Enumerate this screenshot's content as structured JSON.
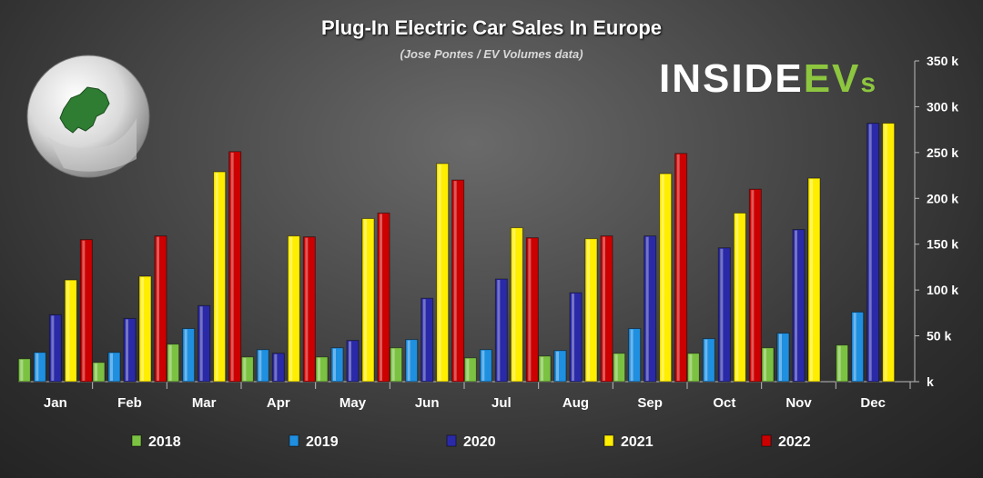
{
  "title": "Plug-In Electric Car Sales In Europe",
  "subtitle": "(Jose Pontes / EV Volumes data)",
  "logo": {
    "prefix": "INSIDE",
    "ev": "EV",
    "suffix": "s"
  },
  "colors": {
    "2018": "#7cc242",
    "2019": "#1f8fe0",
    "2020": "#2a2aa8",
    "2021": "#ffee00",
    "2022": "#cc0000"
  },
  "chart_data": {
    "type": "bar",
    "categories": [
      "Jan",
      "Feb",
      "Mar",
      "Apr",
      "May",
      "Jun",
      "Jul",
      "Aug",
      "Sep",
      "Oct",
      "Nov",
      "Dec"
    ],
    "series": [
      {
        "name": "2018",
        "values": [
          25,
          21,
          41,
          27,
          27,
          37,
          26,
          28,
          31,
          31,
          37,
          40
        ]
      },
      {
        "name": "2019",
        "values": [
          32,
          32,
          58,
          35,
          37,
          46,
          35,
          34,
          58,
          47,
          53,
          76
        ]
      },
      {
        "name": "2020",
        "values": [
          73,
          69,
          83,
          31,
          45,
          91,
          112,
          97,
          159,
          146,
          166,
          282
        ]
      },
      {
        "name": "2021",
        "values": [
          111,
          115,
          229,
          159,
          178,
          238,
          168,
          156,
          227,
          184,
          222,
          282
        ]
      },
      {
        "name": "2022",
        "values": [
          155,
          159,
          251,
          158,
          184,
          220,
          157,
          159,
          249,
          210,
          null,
          null
        ]
      }
    ],
    "ylim": [
      0,
      350
    ],
    "yticks": [
      "k",
      "50 k",
      "100 k",
      "150 k",
      "200 k",
      "250 k",
      "300 k",
      "350 k"
    ],
    "legend_position": "bottom",
    "grid": false
  }
}
